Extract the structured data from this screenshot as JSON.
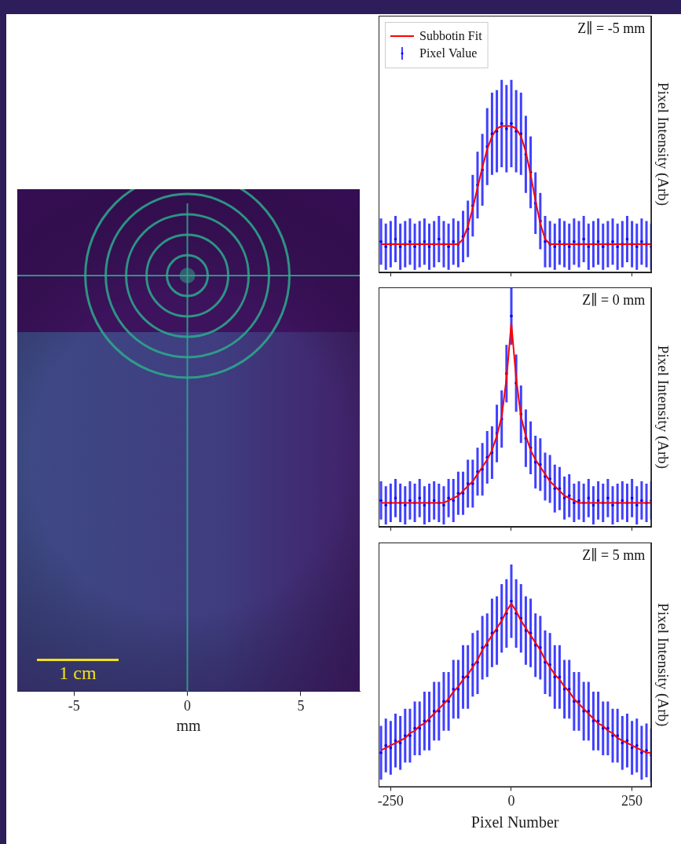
{
  "chart_data": [
    {
      "type": "image",
      "xlabel": "mm",
      "xlim": [
        -7.5,
        7.6
      ],
      "xticks": [
        -5,
        0,
        5
      ],
      "tick_labels": "x",
      "annotations": [
        "1 cm"
      ]
    },
    {
      "type": "line",
      "ylabel": "Pixel Intensity (Arb)",
      "xlim": [
        -275,
        290
      ],
      "xticks": [
        -250,
        0,
        250
      ],
      "ylim": [
        0,
        1
      ],
      "tick_labels": false,
      "legend": "upper left",
      "annotations": [
        "Z∥ = -5 mm"
      ],
      "x": [
        -270,
        -260,
        -250,
        -240,
        -230,
        -220,
        -210,
        -200,
        -190,
        -180,
        -170,
        -160,
        -150,
        -140,
        -130,
        -120,
        -110,
        -100,
        -90,
        -80,
        -70,
        -60,
        -50,
        -40,
        -30,
        -20,
        -10,
        0,
        10,
        20,
        30,
        40,
        50,
        60,
        70,
        80,
        90,
        100,
        110,
        120,
        130,
        140,
        150,
        160,
        170,
        180,
        190,
        200,
        210,
        220,
        230,
        240,
        250,
        260,
        270,
        280,
        290
      ],
      "series": [
        {
          "name": "Subbotin Fit",
          "type": "line",
          "color": "#ff0000",
          "values": [
            0.11,
            0.11,
            0.11,
            0.11,
            0.11,
            0.11,
            0.11,
            0.11,
            0.11,
            0.11,
            0.11,
            0.11,
            0.11,
            0.11,
            0.11,
            0.11,
            0.11,
            0.13,
            0.18,
            0.25,
            0.33,
            0.41,
            0.48,
            0.53,
            0.56,
            0.57,
            0.57,
            0.57,
            0.56,
            0.53,
            0.47,
            0.38,
            0.28,
            0.19,
            0.13,
            0.11,
            0.11,
            0.11,
            0.11,
            0.11,
            0.11,
            0.11,
            0.11,
            0.11,
            0.11,
            0.11,
            0.11,
            0.11,
            0.11,
            0.11,
            0.11,
            0.11,
            0.11,
            0.11,
            0.11,
            0.11,
            0.11
          ]
        },
        {
          "name": "Pixel Value",
          "type": "scatter",
          "color": "#0000ff",
          "values": [
            0.12,
            0.1,
            0.11,
            0.13,
            0.1,
            0.11,
            0.12,
            0.1,
            0.11,
            0.12,
            0.1,
            0.11,
            0.13,
            0.11,
            0.1,
            0.12,
            0.11,
            0.14,
            0.17,
            0.26,
            0.34,
            0.4,
            0.49,
            0.54,
            0.55,
            0.58,
            0.56,
            0.58,
            0.55,
            0.54,
            0.46,
            0.39,
            0.27,
            0.2,
            0.12,
            0.11,
            0.1,
            0.12,
            0.11,
            0.1,
            0.12,
            0.11,
            0.13,
            0.1,
            0.11,
            0.12,
            0.1,
            0.11,
            0.12,
            0.1,
            0.11,
            0.13,
            0.11,
            0.1,
            0.12,
            0.11,
            0.1
          ],
          "errors": [
            0.09,
            0.09,
            0.09,
            0.09,
            0.09,
            0.09,
            0.09,
            0.09,
            0.09,
            0.09,
            0.09,
            0.09,
            0.09,
            0.09,
            0.09,
            0.09,
            0.09,
            0.1,
            0.11,
            0.12,
            0.13,
            0.14,
            0.15,
            0.16,
            0.16,
            0.17,
            0.17,
            0.17,
            0.16,
            0.16,
            0.15,
            0.14,
            0.12,
            0.11,
            0.1,
            0.09,
            0.09,
            0.09,
            0.09,
            0.09,
            0.09,
            0.09,
            0.09,
            0.09,
            0.09,
            0.09,
            0.09,
            0.09,
            0.09,
            0.09,
            0.09,
            0.09,
            0.09,
            0.09,
            0.09,
            0.09,
            0.09
          ]
        }
      ]
    },
    {
      "type": "line",
      "ylabel": "Pixel Intensity (Arb)",
      "xlim": [
        -275,
        290
      ],
      "xticks": [
        -250,
        0,
        250
      ],
      "ylim": [
        0,
        1
      ],
      "tick_labels": false,
      "annotations": [
        "Z∥ = 0 mm"
      ],
      "x": [
        -270,
        -260,
        -250,
        -240,
        -230,
        -220,
        -210,
        -200,
        -190,
        -180,
        -170,
        -160,
        -150,
        -140,
        -130,
        -120,
        -110,
        -100,
        -90,
        -80,
        -70,
        -60,
        -50,
        -40,
        -30,
        -20,
        -10,
        0,
        10,
        20,
        30,
        40,
        50,
        60,
        70,
        80,
        90,
        100,
        110,
        120,
        130,
        140,
        150,
        160,
        170,
        180,
        190,
        200,
        210,
        220,
        230,
        240,
        250,
        260,
        270,
        280,
        290
      ],
      "series": [
        {
          "type": "line",
          "color": "#ff0000",
          "values": [
            0.1,
            0.1,
            0.1,
            0.1,
            0.1,
            0.1,
            0.1,
            0.1,
            0.1,
            0.1,
            0.1,
            0.1,
            0.1,
            0.1,
            0.11,
            0.12,
            0.13,
            0.15,
            0.17,
            0.19,
            0.22,
            0.25,
            0.28,
            0.32,
            0.38,
            0.46,
            0.62,
            0.85,
            0.62,
            0.46,
            0.38,
            0.32,
            0.28,
            0.25,
            0.22,
            0.19,
            0.17,
            0.15,
            0.13,
            0.12,
            0.11,
            0.1,
            0.1,
            0.1,
            0.1,
            0.1,
            0.1,
            0.1,
            0.1,
            0.1,
            0.1,
            0.1,
            0.1,
            0.1,
            0.1,
            0.1,
            0.1
          ]
        },
        {
          "type": "scatter",
          "color": "#0000ff",
          "values": [
            0.11,
            0.09,
            0.1,
            0.12,
            0.1,
            0.09,
            0.11,
            0.1,
            0.12,
            0.09,
            0.1,
            0.11,
            0.1,
            0.09,
            0.12,
            0.11,
            0.14,
            0.14,
            0.18,
            0.18,
            0.23,
            0.24,
            0.29,
            0.31,
            0.39,
            0.45,
            0.64,
            0.88,
            0.6,
            0.47,
            0.37,
            0.33,
            0.27,
            0.26,
            0.21,
            0.2,
            0.16,
            0.16,
            0.12,
            0.13,
            0.1,
            0.11,
            0.1,
            0.12,
            0.09,
            0.11,
            0.1,
            0.12,
            0.09,
            0.1,
            0.11,
            0.1,
            0.12,
            0.09,
            0.11,
            0.1,
            0.11
          ],
          "errors": [
            0.08,
            0.08,
            0.08,
            0.08,
            0.08,
            0.08,
            0.08,
            0.08,
            0.08,
            0.08,
            0.08,
            0.08,
            0.08,
            0.08,
            0.08,
            0.09,
            0.09,
            0.09,
            0.1,
            0.1,
            0.1,
            0.11,
            0.11,
            0.11,
            0.12,
            0.12,
            0.12,
            0.12,
            0.12,
            0.12,
            0.12,
            0.11,
            0.11,
            0.11,
            0.1,
            0.1,
            0.1,
            0.09,
            0.09,
            0.09,
            0.08,
            0.08,
            0.08,
            0.08,
            0.08,
            0.08,
            0.08,
            0.08,
            0.08,
            0.08,
            0.08,
            0.08,
            0.08,
            0.08,
            0.08,
            0.08,
            0.08
          ]
        }
      ]
    },
    {
      "type": "line",
      "xlabel": "Pixel Number",
      "ylabel": "Pixel Intensity (Arb)",
      "xlim": [
        -275,
        290
      ],
      "xticks": [
        -250,
        0,
        250
      ],
      "ylim": [
        0,
        1
      ],
      "tick_labels": "x",
      "annotations": [
        "Z∥ = 5 mm"
      ],
      "x": [
        -270,
        -260,
        -250,
        -240,
        -230,
        -220,
        -210,
        -200,
        -190,
        -180,
        -170,
        -160,
        -150,
        -140,
        -130,
        -120,
        -110,
        -100,
        -90,
        -80,
        -70,
        -60,
        -50,
        -40,
        -30,
        -20,
        -10,
        0,
        10,
        20,
        30,
        40,
        50,
        60,
        70,
        80,
        90,
        100,
        110,
        120,
        130,
        140,
        150,
        160,
        170,
        180,
        190,
        200,
        210,
        220,
        230,
        240,
        250,
        260,
        270,
        280,
        290
      ],
      "series": [
        {
          "type": "line",
          "color": "#ff0000",
          "values": [
            0.15,
            0.16,
            0.17,
            0.18,
            0.19,
            0.2,
            0.22,
            0.23,
            0.25,
            0.26,
            0.28,
            0.3,
            0.32,
            0.34,
            0.36,
            0.39,
            0.41,
            0.44,
            0.46,
            0.49,
            0.52,
            0.56,
            0.59,
            0.62,
            0.65,
            0.68,
            0.72,
            0.75,
            0.72,
            0.68,
            0.65,
            0.62,
            0.59,
            0.56,
            0.52,
            0.49,
            0.46,
            0.44,
            0.41,
            0.39,
            0.36,
            0.34,
            0.32,
            0.3,
            0.28,
            0.26,
            0.25,
            0.23,
            0.22,
            0.2,
            0.19,
            0.18,
            0.17,
            0.16,
            0.15,
            0.14,
            0.14
          ]
        },
        {
          "type": "scatter",
          "color": "#0000ff",
          "values": [
            0.14,
            0.17,
            0.16,
            0.19,
            0.18,
            0.21,
            0.21,
            0.24,
            0.24,
            0.27,
            0.27,
            0.31,
            0.31,
            0.35,
            0.35,
            0.4,
            0.4,
            0.45,
            0.45,
            0.5,
            0.51,
            0.57,
            0.58,
            0.63,
            0.64,
            0.69,
            0.71,
            0.76,
            0.71,
            0.69,
            0.64,
            0.63,
            0.58,
            0.57,
            0.51,
            0.5,
            0.45,
            0.45,
            0.4,
            0.4,
            0.35,
            0.35,
            0.31,
            0.31,
            0.27,
            0.27,
            0.24,
            0.24,
            0.21,
            0.21,
            0.18,
            0.19,
            0.16,
            0.17,
            0.14,
            0.15,
            0.13
          ],
          "errors": [
            0.11,
            0.11,
            0.11,
            0.11,
            0.11,
            0.11,
            0.11,
            0.11,
            0.11,
            0.12,
            0.12,
            0.12,
            0.12,
            0.12,
            0.12,
            0.12,
            0.12,
            0.13,
            0.13,
            0.13,
            0.13,
            0.13,
            0.13,
            0.14,
            0.14,
            0.14,
            0.14,
            0.15,
            0.14,
            0.14,
            0.14,
            0.14,
            0.13,
            0.13,
            0.13,
            0.13,
            0.13,
            0.13,
            0.12,
            0.12,
            0.12,
            0.12,
            0.12,
            0.12,
            0.12,
            0.12,
            0.11,
            0.11,
            0.11,
            0.11,
            0.11,
            0.11,
            0.11,
            0.11,
            0.11,
            0.11,
            0.11
          ]
        }
      ]
    }
  ]
}
